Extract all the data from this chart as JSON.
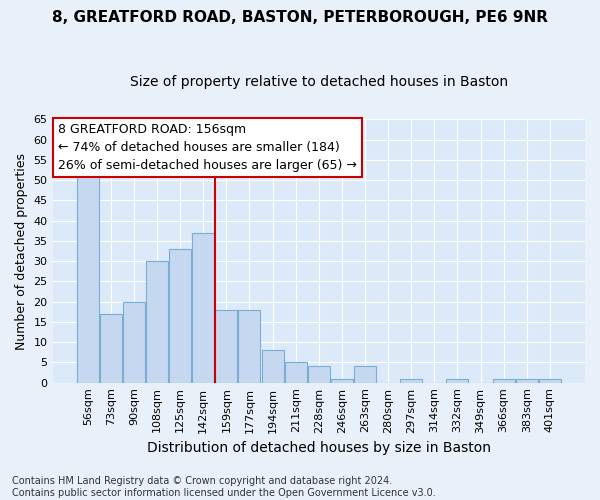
{
  "title1": "8, GREATFORD ROAD, BASTON, PETERBOROUGH, PE6 9NR",
  "title2": "Size of property relative to detached houses in Baston",
  "xlabel": "Distribution of detached houses by size in Baston",
  "ylabel": "Number of detached properties",
  "bar_labels": [
    "56sqm",
    "73sqm",
    "90sqm",
    "108sqm",
    "125sqm",
    "142sqm",
    "159sqm",
    "177sqm",
    "194sqm",
    "211sqm",
    "228sqm",
    "246sqm",
    "263sqm",
    "280sqm",
    "297sqm",
    "314sqm",
    "332sqm",
    "349sqm",
    "366sqm",
    "383sqm",
    "401sqm"
  ],
  "bar_values": [
    51,
    17,
    20,
    30,
    33,
    37,
    18,
    18,
    8,
    5,
    4,
    1,
    4,
    0,
    1,
    0,
    1,
    0,
    1,
    1,
    1
  ],
  "bar_color": "#c5d8f0",
  "bar_edgecolor": "#7aadd4",
  "vline_x": 6.0,
  "vline_color": "#cc0000",
  "annotation_text": "8 GREATFORD ROAD: 156sqm\n← 74% of detached houses are smaller (184)\n26% of semi-detached houses are larger (65) →",
  "annotation_box_color": "#ffffff",
  "annotation_box_edgecolor": "#cc0000",
  "ylim": [
    0,
    65
  ],
  "yticks": [
    0,
    5,
    10,
    15,
    20,
    25,
    30,
    35,
    40,
    45,
    50,
    55,
    60,
    65
  ],
  "footnote": "Contains HM Land Registry data © Crown copyright and database right 2024.\nContains public sector information licensed under the Open Government Licence v3.0.",
  "bg_color": "#dce9f8",
  "fig_bg_color": "#e8f0fa",
  "grid_color": "#ffffff",
  "title1_fontsize": 11,
  "title2_fontsize": 10,
  "xlabel_fontsize": 10,
  "ylabel_fontsize": 9,
  "tick_fontsize": 8,
  "annot_fontsize": 9,
  "footnote_fontsize": 7
}
